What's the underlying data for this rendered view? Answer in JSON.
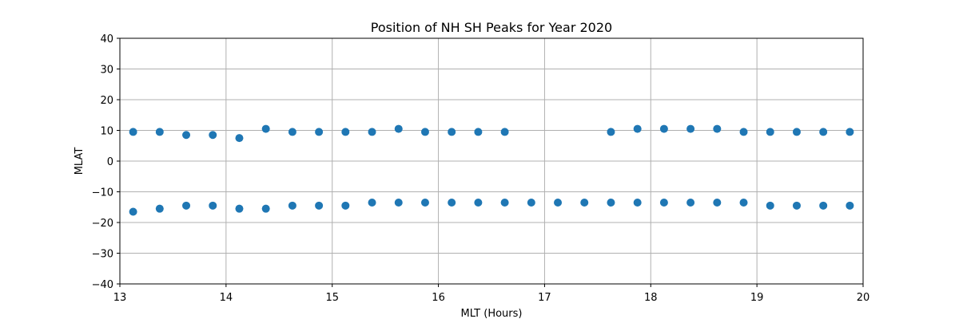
{
  "chart_data": {
    "type": "scatter",
    "title": "Position of NH SH Peaks for Year 2020",
    "xlabel": "MLT (Hours)",
    "ylabel": "MLAT",
    "xlim": [
      13,
      20
    ],
    "ylim": [
      -40,
      40
    ],
    "xticks": [
      13,
      14,
      15,
      16,
      17,
      18,
      19,
      20
    ],
    "yticks": [
      -40,
      -30,
      -20,
      -10,
      0,
      10,
      20,
      30,
      40
    ],
    "grid": true,
    "marker_color": "#1f77b4",
    "series": [
      {
        "x": [
          13.125,
          13.375,
          13.625,
          13.875,
          14.125,
          14.375,
          14.625,
          14.875,
          15.125,
          15.375,
          15.625,
          15.875,
          16.125,
          16.375,
          16.625,
          17.625,
          17.875,
          18.125,
          18.375,
          18.625,
          18.875,
          19.125,
          19.375,
          19.625,
          19.875
        ],
        "y": [
          9.5,
          9.5,
          8.5,
          8.5,
          7.5,
          10.5,
          9.5,
          9.5,
          9.5,
          9.5,
          10.5,
          9.5,
          9.5,
          9.5,
          9.5,
          9.5,
          10.5,
          10.5,
          10.5,
          10.5,
          9.5,
          9.5,
          9.5,
          9.5,
          9.5
        ]
      },
      {
        "x": [
          13.125,
          13.375,
          13.625,
          13.875,
          14.125,
          14.375,
          14.625,
          14.875,
          15.125,
          15.375,
          15.625,
          15.875,
          16.125,
          16.375,
          16.625,
          16.875,
          17.125,
          17.375,
          17.625,
          17.875,
          18.125,
          18.375,
          18.625,
          18.875,
          19.125,
          19.375,
          19.625,
          19.875
        ],
        "y": [
          -16.5,
          -15.5,
          -14.5,
          -14.5,
          -15.5,
          -15.5,
          -14.5,
          -14.5,
          -14.5,
          -13.5,
          -13.5,
          -13.5,
          -13.5,
          -13.5,
          -13.5,
          -13.5,
          -13.5,
          -13.5,
          -13.5,
          -13.5,
          -13.5,
          -13.5,
          -13.5,
          -13.5,
          -14.5,
          -14.5,
          -14.5,
          -14.5
        ]
      }
    ]
  }
}
